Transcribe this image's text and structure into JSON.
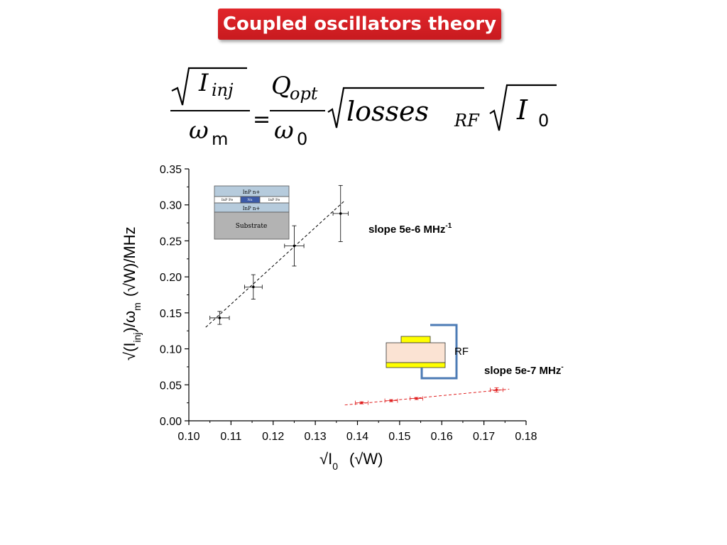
{
  "title": "Coupled oscillators theory",
  "equation": {
    "lhs_num": "I",
    "lhs_num_sub": "inj",
    "lhs_den": "ω",
    "lhs_den_sub": "m",
    "equals": "=",
    "rhs_num": "Q",
    "rhs_num_sub": "opt",
    "rhs_den": "ω",
    "rhs_den_sub": "0",
    "losses": "losses",
    "losses_sub": "RF",
    "i0": "I",
    "i0_sub": "0"
  },
  "inset_top": {
    "layer1": "InP n+",
    "left_pad": "InP Fe",
    "center": "Ns",
    "right_pad": "InP Fe",
    "layer3": "InP n+",
    "substrate": "Substrate"
  },
  "inset_bottom": {
    "label": "RF"
  },
  "chart_data": {
    "type": "scatter",
    "xlabel_main": "√I",
    "xlabel_sub": "0",
    "xlabel_unit": "(√W)",
    "ylabel_pre": "√(I",
    "ylabel_sub1": "inj",
    "ylabel_mid": ")/ω",
    "ylabel_sub2": "m",
    "ylabel_unit": "(√W)/MHz",
    "xlim": [
      0.1,
      0.18
    ],
    "ylim": [
      0.0,
      0.35
    ],
    "x_ticks": [
      "0.10",
      "0.11",
      "0.12",
      "0.13",
      "0.14",
      "0.15",
      "0.16",
      "0.17",
      "0.18"
    ],
    "y_ticks": [
      "0.00",
      "0.05",
      "0.10",
      "0.15",
      "0.20",
      "0.25",
      "0.30",
      "0.35"
    ],
    "series": [
      {
        "color": "#000000",
        "points": [
          {
            "x": 0.1073,
            "y": 0.143,
            "xerr": 0.0023,
            "yerr": 0.009
          },
          {
            "x": 0.1153,
            "y": 0.186,
            "xerr": 0.0021,
            "yerr": 0.017
          },
          {
            "x": 0.125,
            "y": 0.243,
            "xerr": 0.0023,
            "yerr": 0.028
          },
          {
            "x": 0.136,
            "y": 0.288,
            "xerr": 0.0018,
            "yerr": 0.039
          }
        ],
        "fit": {
          "x": [
            0.104,
            0.137
          ],
          "y": [
            0.13,
            0.306
          ]
        },
        "slope_label": "slope 5e-6 MHz",
        "slope_sup": "-1"
      },
      {
        "color": "#e02020",
        "points": [
          {
            "x": 0.141,
            "y": 0.025,
            "xerr": 0.0015,
            "yerr": 0.0015
          },
          {
            "x": 0.148,
            "y": 0.028,
            "xerr": 0.0015,
            "yerr": 0.0015
          },
          {
            "x": 0.154,
            "y": 0.031,
            "xerr": 0.0015,
            "yerr": 0.0015
          },
          {
            "x": 0.173,
            "y": 0.043,
            "xerr": 0.0015,
            "yerr": 0.003
          }
        ],
        "fit": {
          "x": [
            0.137,
            0.176
          ],
          "y": [
            0.022,
            0.044
          ]
        },
        "slope_label": "slope 5e-7 MHz",
        "slope_sup": "-"
      }
    ]
  }
}
